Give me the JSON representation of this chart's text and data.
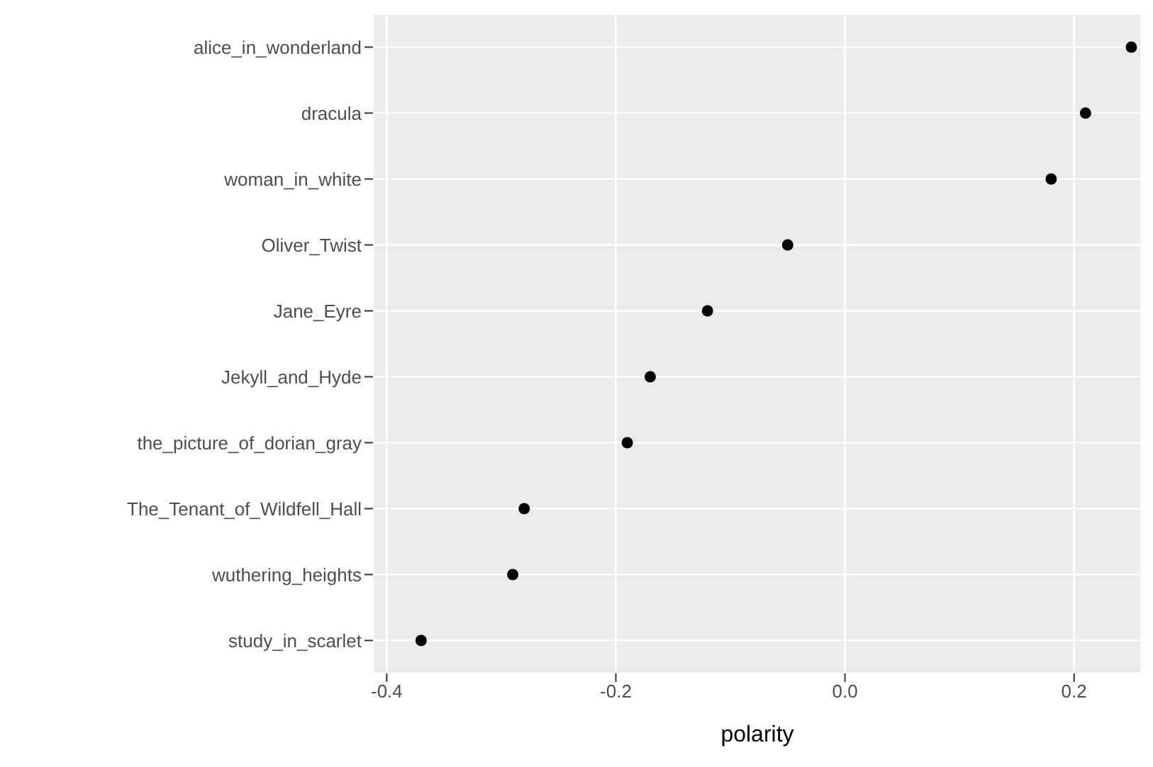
{
  "chart_data": {
    "type": "scatter",
    "xlabel": "polarity",
    "categories": [
      "alice_in_wonderland",
      "dracula",
      "woman_in_white",
      "Oliver_Twist",
      "Jane_Eyre",
      "Jekyll_and_Hyde",
      "the_picture_of_dorian_gray",
      "The_Tenant_of_Wildfell_Hall",
      "wuthering_heights",
      "study_in_scarlet"
    ],
    "orientation": "horizontal",
    "values": [
      0.25,
      0.21,
      0.18,
      -0.05,
      -0.12,
      -0.17,
      -0.19,
      -0.28,
      -0.29,
      -0.37
    ],
    "color": "#000000",
    "xlim": [
      -0.412,
      0.259
    ],
    "xticks": [
      {
        "value": -0.4,
        "label": "-0.4"
      },
      {
        "value": -0.2,
        "label": "-0.2"
      },
      {
        "value": 0,
        "label": "0.0"
      },
      {
        "value": 0.2,
        "label": "0.2"
      }
    ],
    "grid": true,
    "marker": "circle"
  }
}
